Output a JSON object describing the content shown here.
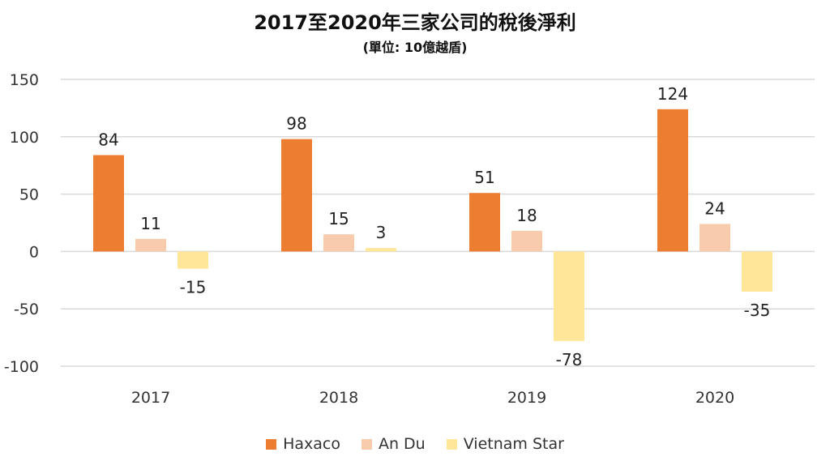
{
  "chart_data": {
    "type": "bar",
    "title": "2017至2020年三家公司的稅後淨利",
    "subtitle": "(單位: 10億越盾)",
    "categories": [
      "2017",
      "2018",
      "2019",
      "2020"
    ],
    "series": [
      {
        "name": "Haxaco",
        "color": "#ED7D31",
        "values": [
          84,
          98,
          51,
          124
        ]
      },
      {
        "name": "An Du",
        "color": "#F8CBAD",
        "values": [
          11,
          15,
          18,
          24
        ]
      },
      {
        "name": "Vietnam Star",
        "color": "#FFE699",
        "values": [
          -15,
          3,
          -78,
          -35
        ]
      }
    ],
    "ylim": [
      -100,
      150
    ],
    "yticks": [
      150,
      100,
      50,
      0,
      -50,
      -100
    ],
    "grid": true,
    "legend": "bottom"
  }
}
